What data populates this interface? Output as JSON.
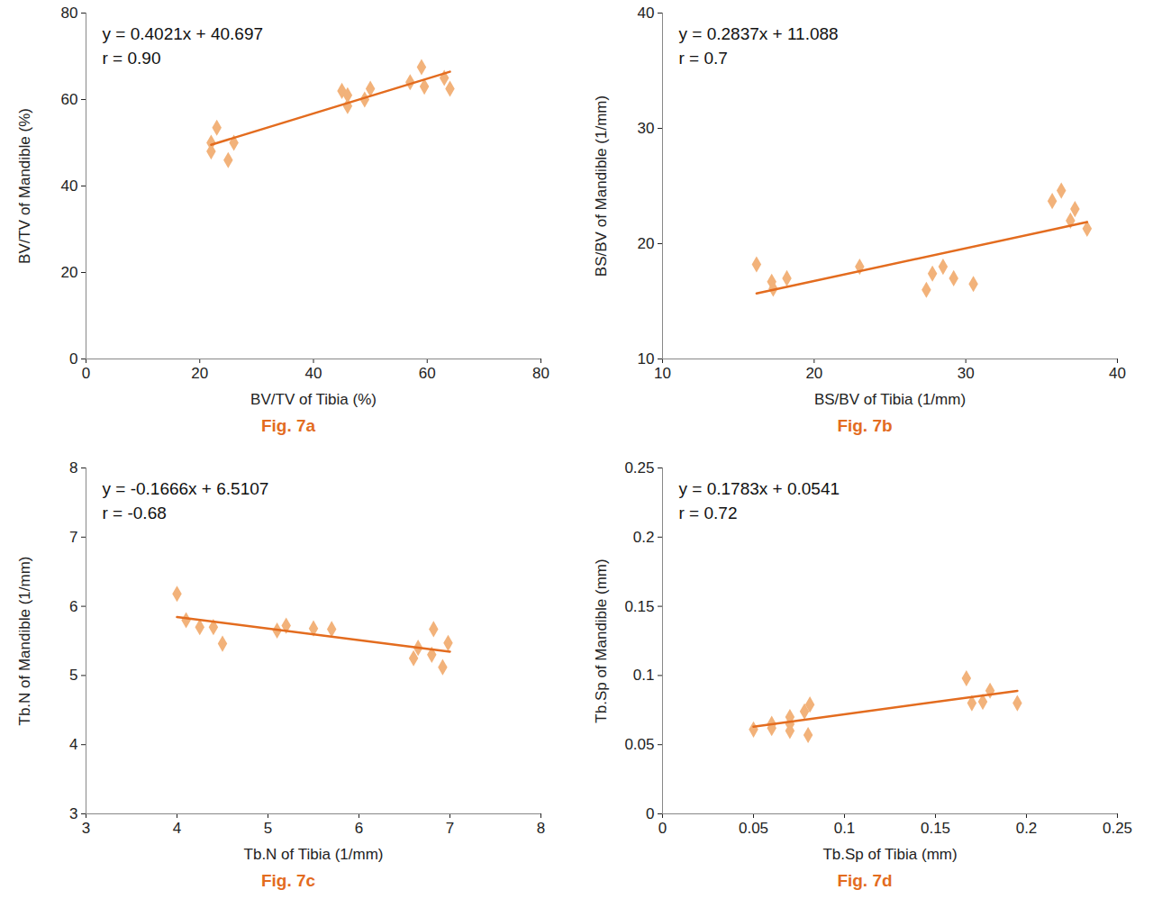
{
  "chart_data": [
    {
      "type": "scatter",
      "caption": "Fig. 7a",
      "x_label": "BV/TV of Tibia (%)",
      "y_label": "BV/TV of Mandible (%)",
      "annotations": [
        "y = 0.4021x + 40.697",
        "r = 0.90"
      ],
      "xlim": [
        0,
        80
      ],
      "xticks": [
        0,
        20,
        40,
        60,
        80
      ],
      "ylim": [
        0,
        80
      ],
      "yticks": [
        0,
        20,
        40,
        60,
        80
      ],
      "color": "#f2b27a",
      "marker": "diamond",
      "x": [
        22,
        22,
        23,
        25,
        26,
        45,
        46,
        46,
        49,
        50,
        57,
        59,
        59.5,
        63,
        64
      ],
      "values": [
        48,
        50,
        53.5,
        46,
        50,
        62,
        61,
        58.5,
        60,
        62.5,
        64,
        67.5,
        63,
        65,
        62.5
      ],
      "trend": {
        "x": [
          22,
          64
        ],
        "values": [
          49.54,
          66.43
        ],
        "color": "#e36c1f",
        "line_style": "solid"
      }
    },
    {
      "type": "scatter",
      "caption": "Fig. 7b",
      "x_label": "BS/BV of Tibia (1/mm)",
      "y_label": "BS/BV of Mandible (1/mm)",
      "annotations": [
        "y = 0.2837x + 11.088",
        "r = 0.7"
      ],
      "xlim": [
        10,
        40
      ],
      "xticks": [
        10,
        20,
        30,
        40
      ],
      "ylim": [
        10,
        40
      ],
      "yticks": [
        10,
        20,
        30,
        40
      ],
      "color": "#f2b27a",
      "marker": "diamond",
      "x": [
        16.2,
        17.2,
        17.3,
        18.2,
        23,
        27.4,
        27.8,
        28.5,
        29.2,
        30.5,
        35.7,
        36.3,
        36.9,
        37.2,
        38
      ],
      "values": [
        18.2,
        16.7,
        16.1,
        17,
        18,
        16,
        17.4,
        18,
        17,
        16.5,
        23.7,
        24.6,
        22,
        23,
        21.3
      ],
      "trend": {
        "x": [
          16.2,
          38
        ],
        "values": [
          15.68,
          21.87
        ],
        "color": "#e36c1f",
        "line_style": "solid"
      }
    },
    {
      "type": "scatter",
      "caption": "Fig. 7c",
      "x_label": "Tb.N of Tibia (1/mm)",
      "y_label": "Tb.N of Mandible (1/mm)",
      "annotations": [
        "y = -0.1666x + 6.5107",
        "r = -0.68"
      ],
      "xlim": [
        3,
        8
      ],
      "xticks": [
        3,
        4,
        5,
        6,
        7,
        8
      ],
      "ylim": [
        3,
        8
      ],
      "yticks": [
        3,
        4,
        5,
        6,
        7,
        8
      ],
      "color": "#f2b27a",
      "marker": "diamond",
      "x": [
        4,
        4.1,
        4.25,
        4.4,
        4.5,
        5.1,
        5.2,
        5.5,
        5.7,
        6.6,
        6.65,
        6.8,
        6.82,
        6.92,
        6.98
      ],
      "values": [
        6.18,
        5.8,
        5.7,
        5.7,
        5.46,
        5.65,
        5.72,
        5.68,
        5.67,
        5.25,
        5.4,
        5.3,
        5.67,
        5.12,
        5.47
      ],
      "trend": {
        "x": [
          4,
          7
        ],
        "values": [
          5.844,
          5.345
        ],
        "color": "#e36c1f",
        "line_style": "solid"
      }
    },
    {
      "type": "scatter",
      "caption": "Fig. 7d",
      "x_label": "Tb.Sp of Tibia (mm)",
      "y_label": "Tb.Sp of Mandible (mm)",
      "annotations": [
        "y = 0.1783x + 0.0541",
        "r = 0.72"
      ],
      "xlim": [
        0,
        0.25
      ],
      "xticks": [
        0,
        0.05,
        0.1,
        0.15,
        0.2,
        0.25
      ],
      "ylim": [
        0,
        0.25
      ],
      "yticks": [
        0,
        0.05,
        0.1,
        0.15,
        0.2,
        0.25
      ],
      "color": "#f2b27a",
      "marker": "diamond",
      "x": [
        0.05,
        0.06,
        0.06,
        0.07,
        0.07,
        0.07,
        0.078,
        0.081,
        0.08,
        0.167,
        0.17,
        0.176,
        0.18,
        0.195
      ],
      "values": [
        0.061,
        0.065,
        0.062,
        0.07,
        0.065,
        0.06,
        0.074,
        0.079,
        0.057,
        0.098,
        0.08,
        0.081,
        0.089,
        0.08
      ],
      "trend": {
        "x": [
          0.05,
          0.195
        ],
        "values": [
          0.063,
          0.0889
        ],
        "color": "#e36c1f",
        "line_style": "solid"
      }
    }
  ]
}
